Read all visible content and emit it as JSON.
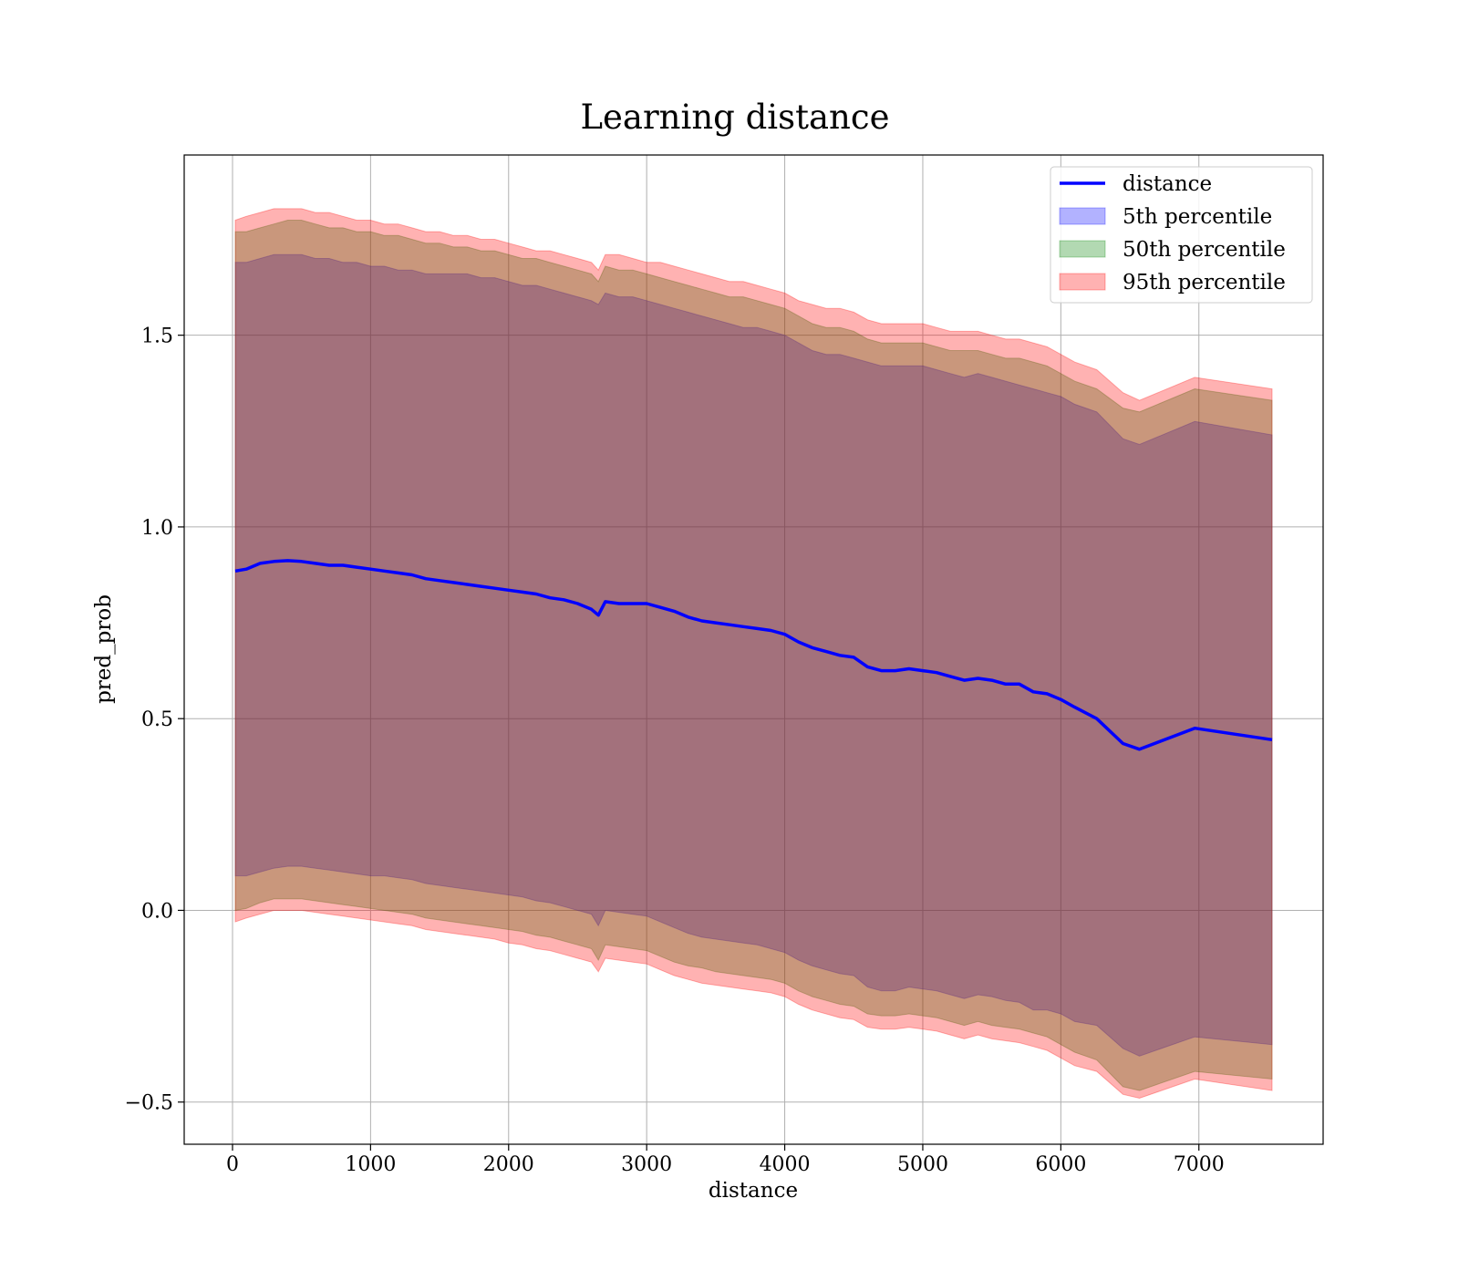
{
  "chart_data": {
    "type": "area",
    "title": "Learning distance",
    "xlabel": "distance",
    "ylabel": "pred_prob",
    "xlim": [
      -350,
      7900
    ],
    "ylim": [
      -0.61,
      1.97
    ],
    "xticks": [
      0,
      1000,
      2000,
      3000,
      4000,
      5000,
      6000,
      7000
    ],
    "xtick_labels": [
      "0",
      "1000",
      "2000",
      "3000",
      "4000",
      "5000",
      "6000",
      "7000"
    ],
    "yticks": [
      -0.5,
      0.0,
      0.5,
      1.0,
      1.5
    ],
    "ytick_labels": [
      "−0.5",
      "0.0",
      "0.5",
      "1.0",
      "1.5"
    ],
    "grid": true,
    "legend_position": "top-right",
    "colors": {
      "line": "#0000ff",
      "band_5": "#0000ff",
      "band_50": "#008000",
      "band_95": "#ff0000",
      "grid": "#b0b0b0"
    },
    "x": [
      20,
      100,
      200,
      300,
      400,
      500,
      600,
      700,
      800,
      900,
      1000,
      1100,
      1200,
      1300,
      1400,
      1500,
      1600,
      1700,
      1800,
      1900,
      2000,
      2100,
      2200,
      2300,
      2400,
      2500,
      2600,
      2650,
      2700,
      2800,
      2900,
      3000,
      3100,
      3200,
      3300,
      3400,
      3500,
      3600,
      3700,
      3800,
      3900,
      4000,
      4100,
      4200,
      4300,
      4400,
      4500,
      4600,
      4700,
      4800,
      4900,
      5000,
      5100,
      5200,
      5300,
      5400,
      5500,
      5600,
      5700,
      5800,
      5900,
      6000,
      6100,
      6260,
      6450,
      6570,
      6970,
      7530
    ],
    "series": [
      {
        "name": "distance",
        "kind": "line",
        "values": [
          0.885,
          0.89,
          0.905,
          0.91,
          0.912,
          0.91,
          0.905,
          0.9,
          0.9,
          0.895,
          0.89,
          0.885,
          0.88,
          0.875,
          0.865,
          0.86,
          0.855,
          0.85,
          0.845,
          0.84,
          0.835,
          0.83,
          0.825,
          0.815,
          0.81,
          0.8,
          0.785,
          0.77,
          0.805,
          0.8,
          0.8,
          0.8,
          0.79,
          0.78,
          0.765,
          0.755,
          0.75,
          0.745,
          0.74,
          0.735,
          0.73,
          0.72,
          0.7,
          0.685,
          0.675,
          0.665,
          0.66,
          0.635,
          0.625,
          0.625,
          0.63,
          0.625,
          0.62,
          0.61,
          0.6,
          0.605,
          0.6,
          0.59,
          0.59,
          0.57,
          0.565,
          0.55,
          0.53,
          0.5,
          0.435,
          0.42,
          0.475,
          0.445
        ]
      },
      {
        "name": "5th percentile",
        "kind": "band",
        "upper": [
          1.69,
          1.69,
          1.7,
          1.71,
          1.71,
          1.71,
          1.7,
          1.7,
          1.69,
          1.69,
          1.68,
          1.68,
          1.67,
          1.67,
          1.66,
          1.66,
          1.66,
          1.66,
          1.65,
          1.65,
          1.64,
          1.63,
          1.63,
          1.62,
          1.61,
          1.6,
          1.59,
          1.58,
          1.61,
          1.6,
          1.6,
          1.59,
          1.58,
          1.57,
          1.56,
          1.55,
          1.54,
          1.53,
          1.52,
          1.52,
          1.51,
          1.5,
          1.48,
          1.46,
          1.45,
          1.45,
          1.44,
          1.43,
          1.42,
          1.42,
          1.42,
          1.42,
          1.41,
          1.4,
          1.39,
          1.4,
          1.39,
          1.38,
          1.37,
          1.36,
          1.35,
          1.34,
          1.32,
          1.3,
          1.23,
          1.215,
          1.275,
          1.24
        ],
        "lower": [
          0.09,
          0.09,
          0.1,
          0.11,
          0.115,
          0.115,
          0.11,
          0.105,
          0.1,
          0.095,
          0.09,
          0.09,
          0.085,
          0.08,
          0.07,
          0.065,
          0.06,
          0.055,
          0.05,
          0.045,
          0.04,
          0.035,
          0.025,
          0.02,
          0.01,
          0.0,
          -0.01,
          -0.04,
          0.0,
          -0.005,
          -0.01,
          -0.015,
          -0.03,
          -0.045,
          -0.06,
          -0.07,
          -0.075,
          -0.08,
          -0.085,
          -0.09,
          -0.1,
          -0.11,
          -0.13,
          -0.145,
          -0.155,
          -0.165,
          -0.17,
          -0.2,
          -0.21,
          -0.21,
          -0.2,
          -0.205,
          -0.21,
          -0.22,
          -0.23,
          -0.22,
          -0.225,
          -0.235,
          -0.24,
          -0.26,
          -0.26,
          -0.27,
          -0.29,
          -0.3,
          -0.36,
          -0.38,
          -0.33,
          -0.35
        ]
      },
      {
        "name": "50th percentile",
        "kind": "band",
        "upper": [
          1.77,
          1.77,
          1.78,
          1.79,
          1.8,
          1.8,
          1.79,
          1.78,
          1.78,
          1.77,
          1.77,
          1.76,
          1.76,
          1.75,
          1.74,
          1.74,
          1.73,
          1.73,
          1.72,
          1.72,
          1.71,
          1.7,
          1.7,
          1.69,
          1.68,
          1.67,
          1.66,
          1.64,
          1.68,
          1.67,
          1.67,
          1.66,
          1.65,
          1.64,
          1.63,
          1.62,
          1.61,
          1.6,
          1.6,
          1.59,
          1.58,
          1.57,
          1.55,
          1.53,
          1.52,
          1.52,
          1.51,
          1.49,
          1.48,
          1.48,
          1.48,
          1.48,
          1.47,
          1.46,
          1.46,
          1.46,
          1.45,
          1.44,
          1.44,
          1.43,
          1.42,
          1.4,
          1.38,
          1.36,
          1.31,
          1.3,
          1.36,
          1.33
        ],
        "lower": [
          0.0,
          0.005,
          0.02,
          0.03,
          0.03,
          0.03,
          0.025,
          0.02,
          0.015,
          0.01,
          0.005,
          0.0,
          -0.005,
          -0.01,
          -0.02,
          -0.025,
          -0.03,
          -0.035,
          -0.04,
          -0.045,
          -0.05,
          -0.055,
          -0.065,
          -0.07,
          -0.08,
          -0.09,
          -0.1,
          -0.13,
          -0.09,
          -0.095,
          -0.1,
          -0.105,
          -0.12,
          -0.135,
          -0.145,
          -0.15,
          -0.16,
          -0.165,
          -0.17,
          -0.175,
          -0.18,
          -0.19,
          -0.21,
          -0.225,
          -0.235,
          -0.245,
          -0.25,
          -0.27,
          -0.275,
          -0.275,
          -0.27,
          -0.275,
          -0.28,
          -0.29,
          -0.3,
          -0.29,
          -0.3,
          -0.305,
          -0.31,
          -0.32,
          -0.33,
          -0.35,
          -0.37,
          -0.39,
          -0.46,
          -0.47,
          -0.42,
          -0.44
        ]
      },
      {
        "name": "95th percentile",
        "kind": "band",
        "upper": [
          1.8,
          1.81,
          1.82,
          1.83,
          1.83,
          1.83,
          1.82,
          1.82,
          1.81,
          1.8,
          1.8,
          1.79,
          1.79,
          1.78,
          1.77,
          1.77,
          1.76,
          1.76,
          1.75,
          1.75,
          1.74,
          1.73,
          1.72,
          1.72,
          1.71,
          1.7,
          1.69,
          1.67,
          1.71,
          1.71,
          1.7,
          1.69,
          1.69,
          1.68,
          1.67,
          1.66,
          1.65,
          1.64,
          1.64,
          1.63,
          1.62,
          1.61,
          1.59,
          1.58,
          1.57,
          1.57,
          1.56,
          1.54,
          1.53,
          1.53,
          1.53,
          1.53,
          1.52,
          1.51,
          1.51,
          1.51,
          1.5,
          1.49,
          1.49,
          1.48,
          1.47,
          1.45,
          1.43,
          1.41,
          1.35,
          1.33,
          1.39,
          1.36
        ],
        "lower": [
          -0.03,
          -0.02,
          -0.01,
          0.0,
          0.0,
          0.0,
          -0.005,
          -0.01,
          -0.015,
          -0.02,
          -0.025,
          -0.03,
          -0.035,
          -0.04,
          -0.05,
          -0.055,
          -0.06,
          -0.065,
          -0.07,
          -0.075,
          -0.085,
          -0.09,
          -0.1,
          -0.105,
          -0.115,
          -0.125,
          -0.135,
          -0.16,
          -0.125,
          -0.13,
          -0.135,
          -0.14,
          -0.155,
          -0.17,
          -0.18,
          -0.19,
          -0.195,
          -0.2,
          -0.205,
          -0.21,
          -0.215,
          -0.225,
          -0.245,
          -0.26,
          -0.27,
          -0.28,
          -0.285,
          -0.305,
          -0.31,
          -0.31,
          -0.305,
          -0.31,
          -0.315,
          -0.325,
          -0.335,
          -0.325,
          -0.335,
          -0.34,
          -0.345,
          -0.355,
          -0.365,
          -0.385,
          -0.405,
          -0.42,
          -0.48,
          -0.49,
          -0.44,
          -0.47
        ]
      }
    ],
    "legend": [
      {
        "label": "distance",
        "kind": "line",
        "color": "#0000ff"
      },
      {
        "label": "5th percentile",
        "kind": "patch",
        "color": "#0000ff"
      },
      {
        "label": "50th percentile",
        "kind": "patch",
        "color": "#008000"
      },
      {
        "label": "95th percentile",
        "kind": "patch",
        "color": "#ff0000"
      }
    ]
  }
}
